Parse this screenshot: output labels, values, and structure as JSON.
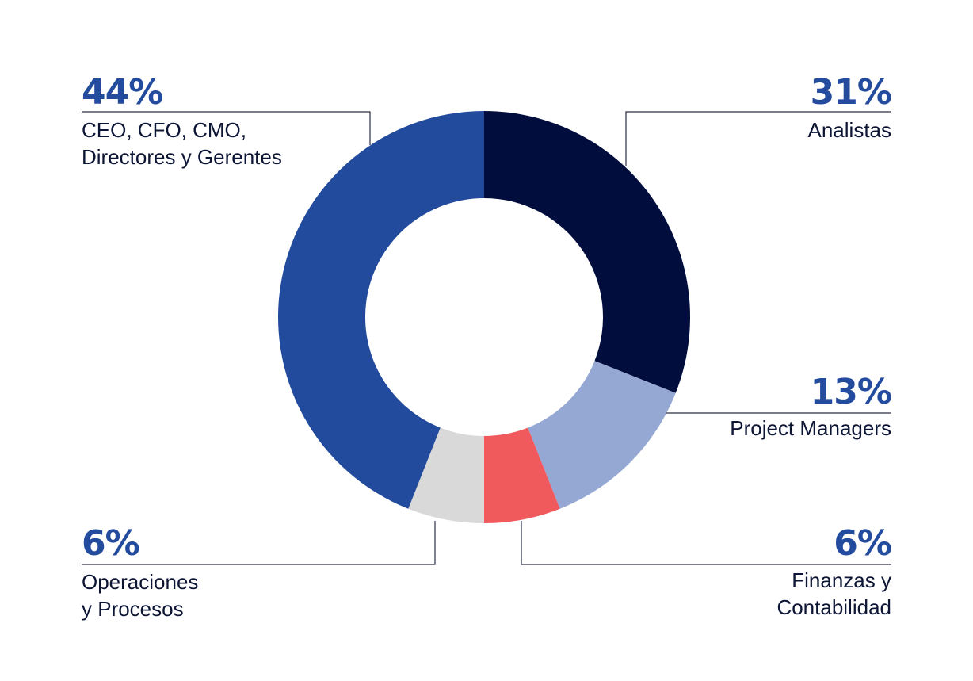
{
  "chart_data": {
    "type": "pie",
    "donut": true,
    "slices": [
      {
        "id": "analistas",
        "value": 31,
        "percent_label": "31%",
        "label_lines": [
          "Analistas"
        ],
        "color": "#000D3D"
      },
      {
        "id": "project-managers",
        "value": 13,
        "percent_label": "13%",
        "label_lines": [
          "Project Managers"
        ],
        "color": "#94A8D3"
      },
      {
        "id": "finanzas",
        "value": 6,
        "percent_label": "6%",
        "label_lines": [
          "Finanzas y",
          "Contabilidad"
        ],
        "color": "#F05A5D"
      },
      {
        "id": "operaciones",
        "value": 6,
        "percent_label": "6%",
        "label_lines": [
          "Operaciones",
          "y Procesos"
        ],
        "color": "#D9D9D9"
      },
      {
        "id": "directores",
        "value": 44,
        "percent_label": "44%",
        "label_lines": [
          "CEO, CFO, CMO,",
          "Directores y Gerentes"
        ],
        "color": "#224B9E"
      }
    ]
  }
}
